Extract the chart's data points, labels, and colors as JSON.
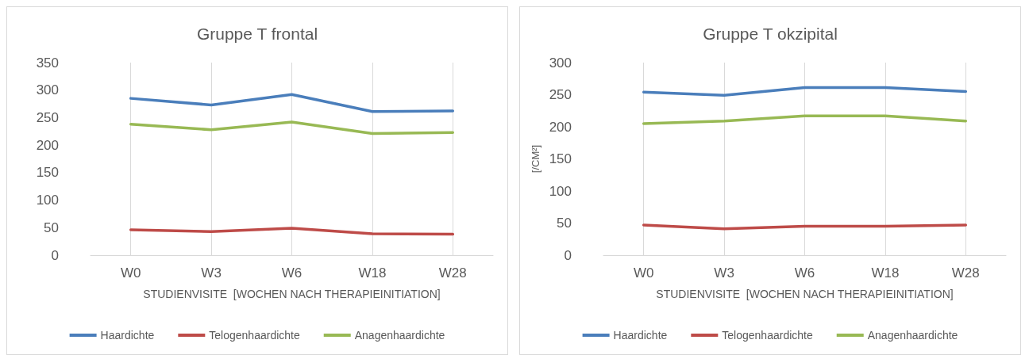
{
  "chart_data": [
    {
      "type": "line",
      "title": "Gruppe T frontal",
      "xlabel": "STUDIENVISITE  [WOCHEN NACH THERAPIEINITIATION]",
      "categories": [
        "W0",
        "W3",
        "W6",
        "W18",
        "W28"
      ],
      "series": [
        {
          "name": "Haardichte",
          "color": "#4a7ebb",
          "values": [
            285,
            273,
            292,
            261,
            262
          ]
        },
        {
          "name": "Telogenhaardichte",
          "color": "#be4b48",
          "values": [
            46,
            43,
            49,
            39,
            38
          ]
        },
        {
          "name": "Anagenhaardichte",
          "color": "#98b954",
          "values": [
            238,
            228,
            242,
            221,
            223
          ]
        }
      ],
      "ylim": [
        0,
        350
      ],
      "yticks": [
        0,
        50,
        100,
        150,
        200,
        250,
        300,
        350
      ],
      "grid": "x",
      "legend": "bottom",
      "marker": "none",
      "line_style": "solid"
    },
    {
      "type": "line",
      "title": "Gruppe T okzipital",
      "xlabel": "STUDIENVISITE  [WOCHEN NACH THERAPIEINITIATION]",
      "ylabel": "[/CM²]",
      "categories": [
        "W0",
        "W3",
        "W6",
        "W18",
        "W28"
      ],
      "series": [
        {
          "name": "Haardichte",
          "color": "#4a7ebb",
          "values": [
            254,
            249,
            261,
            261,
            255
          ]
        },
        {
          "name": "Telogenhaardichte",
          "color": "#be4b48",
          "values": [
            47,
            41,
            45,
            45,
            47
          ]
        },
        {
          "name": "Anagenhaardichte",
          "color": "#98b954",
          "values": [
            205,
            209,
            217,
            217,
            209
          ]
        }
      ],
      "ylim": [
        0,
        300
      ],
      "yticks": [
        0,
        50,
        100,
        150,
        200,
        250,
        300
      ],
      "grid": "x",
      "legend": "bottom",
      "marker": "none",
      "line_style": "solid"
    }
  ]
}
